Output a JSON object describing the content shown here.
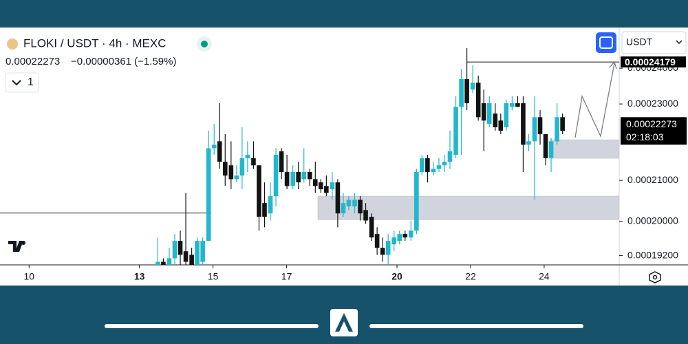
{
  "header": {
    "symbol": "FLOKI / USDT · 4h · MEXC",
    "price": "0.00022273",
    "change": "−0.00000361 (−1.59%)",
    "indicators": "1"
  },
  "currency": "USDT",
  "countdown": "02:18:03",
  "chart_data": {
    "type": "candlestick",
    "x": [
      13.5,
      13.65,
      13.81,
      13.96,
      14.11,
      14.26,
      14.42,
      14.57,
      14.72,
      14.88,
      15.03,
      15.18,
      15.33,
      15.49,
      15.64,
      15.79,
      15.94,
      16.1,
      16.25,
      16.4,
      16.56,
      16.71,
      16.86,
      17.01,
      17.17,
      17.32,
      17.47,
      17.63,
      17.78,
      17.93,
      18.08,
      18.24,
      18.39,
      18.54,
      18.69,
      18.85,
      19.0,
      19.15,
      19.31,
      19.46,
      19.61,
      19.76,
      19.92,
      20.07,
      20.22,
      20.38,
      20.53,
      20.68,
      20.83,
      20.99,
      21.14,
      21.29,
      21.44,
      21.6,
      21.75,
      21.9,
      22.06,
      22.21,
      22.36,
      22.51,
      22.67,
      22.82,
      22.97,
      23.13,
      23.28,
      23.43,
      23.58,
      23.74,
      23.89,
      24.04,
      24.19,
      24.35,
      24.5
    ],
    "open": [
      0.0001899,
      0.0001906,
      0.0001899,
      0.0001914,
      0.0001954,
      0.000193,
      0.0001922,
      0.0001899,
      0.0001906,
      0.0001954,
      0.0002182,
      0.00022,
      0.0002147,
      0.0002138,
      0.0002103,
      0.0002112,
      0.0002156,
      0.0002156,
      0.0002138,
      0.0002044,
      0.0002019,
      0.0002061,
      0.0002174,
      0.0002121,
      0.0002086,
      0.0002121,
      0.0002103,
      0.0002121,
      0.0002103,
      0.0002095,
      0.0002086,
      0.0002078,
      0.0002095,
      0.0002019,
      0.0002036,
      0.0002036,
      0.0002052,
      0.0002027,
      0.0002011,
      0.000197,
      0.0001938,
      0.0001922,
      0.0001946,
      0.0001954,
      0.000197,
      0.0001962,
      0.0001978,
      0.0002121,
      0.0002156,
      0.0002121,
      0.0002129,
      0.0002138,
      0.0002147,
      0.0002165,
      0.0002292,
      0.0002369,
      0.000234,
      0.0002359,
      0.0002302,
      0.0002246,
      0.0002274,
      0.0002255,
      0.0002237,
      0.0002292,
      0.0002302,
      0.0002302,
      0.0002191,
      0.00022,
      0.0002264,
      0.0002219,
      0.0002156,
      0.00022,
      0.0002264
    ],
    "high": [
      0.0001962,
      0.0001914,
      0.0001938,
      0.000197,
      0.0001978,
      0.0002069,
      0.0001938,
      0.0001962,
      0.0001962,
      0.0002228,
      0.0002246,
      0.0002302,
      0.0002219,
      0.00022,
      0.0002138,
      0.0002237,
      0.00022,
      0.00022,
      0.0002138,
      0.0002095,
      0.0002095,
      0.0002182,
      0.0002182,
      0.0002165,
      0.0002138,
      0.0002147,
      0.0002182,
      0.0002129,
      0.0002147,
      0.0002103,
      0.0002112,
      0.0002121,
      0.0002103,
      0.0002069,
      0.0002061,
      0.0002069,
      0.0002061,
      0.0002044,
      0.0002019,
      0.0001986,
      0.0001962,
      0.000197,
      0.0001978,
      0.0001978,
      0.0001978,
      0.0002002,
      0.0002129,
      0.0002165,
      0.0002165,
      0.0002147,
      0.0002156,
      0.0002165,
      0.0002228,
      0.0002321,
      0.0002398,
      0.0002458,
      0.0002408,
      0.0002379,
      0.000234,
      0.0002321,
      0.0002302,
      0.0002274,
      0.0002311,
      0.0002321,
      0.0002321,
      0.0002321,
      0.0002219,
      0.0002321,
      0.0002283,
      0.0002219,
      0.0002209,
      0.0002302,
      0.0002274
    ],
    "low": [
      0.0001899,
      0.0001899,
      0.0001899,
      0.0001899,
      0.0001899,
      0.0001899,
      0.0001899,
      0.0001899,
      0.0001899,
      0.0001954,
      0.0002165,
      0.0002129,
      0.0002086,
      0.0002078,
      0.0002095,
      0.0002078,
      0.0002121,
      0.0002129,
      0.0001978,
      0.0001986,
      0.0002002,
      0.0002036,
      0.0002103,
      0.0002078,
      0.0002078,
      0.0002078,
      0.0002095,
      0.0002086,
      0.0002069,
      0.0002069,
      0.0002061,
      0.0002052,
      0.0001986,
      0.0002011,
      0.0002027,
      0.0002019,
      0.0002002,
      0.0001994,
      0.0001954,
      0.0001922,
      0.0001906,
      0.0001899,
      0.000193,
      0.0001946,
      0.0001954,
      0.0001954,
      0.000197,
      0.0002112,
      0.0002095,
      0.0002112,
      0.0002121,
      0.0002121,
      0.0002129,
      0.0002156,
      0.0002165,
      0.0002283,
      0.000233,
      0.0002255,
      0.0002174,
      0.0002237,
      0.0002228,
      0.0002219,
      0.0002228,
      0.0002283,
      0.0002292,
      0.0002121,
      0.0002174,
      0.0002052,
      0.0002191,
      0.0002138,
      0.0002121,
      0.0002191,
      0.0002219
    ],
    "close": [
      0.0001906,
      0.0001899,
      0.0001914,
      0.0001954,
      0.0001922,
      0.0001906,
      0.0001899,
      0.0001954,
      0.0001954,
      0.0002182,
      0.0002191,
      0.0002147,
      0.0002112,
      0.0002103,
      0.0002112,
      0.0002156,
      0.0002165,
      0.0002138,
      0.0002011,
      0.0002011,
      0.0002061,
      0.0002165,
      0.0002121,
      0.0002086,
      0.0002121,
      0.0002095,
      0.0002121,
      0.0002103,
      0.0002086,
      0.0002078,
      0.0002069,
      0.0002095,
      0.0002019,
      0.0002044,
      0.0002052,
      0.0002052,
      0.0002019,
      0.0002002,
      0.0001962,
      0.0001938,
      0.0001922,
      0.0001954,
      0.0001962,
      0.000197,
      0.0001962,
      0.0001978,
      0.0002121,
      0.0002156,
      0.0002121,
      0.0002129,
      0.0002138,
      0.0002147,
      0.0002174,
      0.0002292,
      0.0002369,
      0.0002302,
      0.0002359,
      0.0002264,
      0.0002255,
      0.0002302,
      0.0002237,
      0.0002228,
      0.0002302,
      0.0002302,
      0.0002292,
      0.0002191,
      0.00022,
      0.0002264,
      0.0002219,
      0.0002156,
      0.00022,
      0.0002264,
      0.00022273
    ],
    "up_color": "#22b7cc",
    "down_color": "#131313",
    "ylim": [
      0.0001899,
      0.0002515
    ],
    "log_scale": true,
    "yticks": [
      {
        "value": 0.00024,
        "label": "0.00024000"
      },
      {
        "value": 0.00023,
        "label": "0.00023000"
      },
      {
        "value": 0.00021,
        "label": "0.00021000"
      },
      {
        "value": 0.0002,
        "label": "0.00020000"
      },
      {
        "value": 0.000192,
        "label": "0.00019200"
      }
    ],
    "xlim": [
      9.21,
      26.04
    ],
    "xticks": [
      10,
      13,
      15,
      17,
      20,
      22,
      24
    ],
    "lines": [
      {
        "value": 0.00024179,
        "x": [
          21.89,
          26.04
        ],
        "labeled": true
      },
      {
        "value": 0.000202,
        "x": [
          9.21,
          14.95
        ]
      }
    ],
    "zones": [
      {
        "y": [
          0.0002156,
          0.0002204
        ],
        "x": [
          24.17,
          26.04
        ]
      },
      {
        "y": [
          0.0002004,
          0.0002061
        ],
        "x": [
          17.85,
          26.04
        ]
      }
    ],
    "zone_color": "#d1d4dc"
  }
}
